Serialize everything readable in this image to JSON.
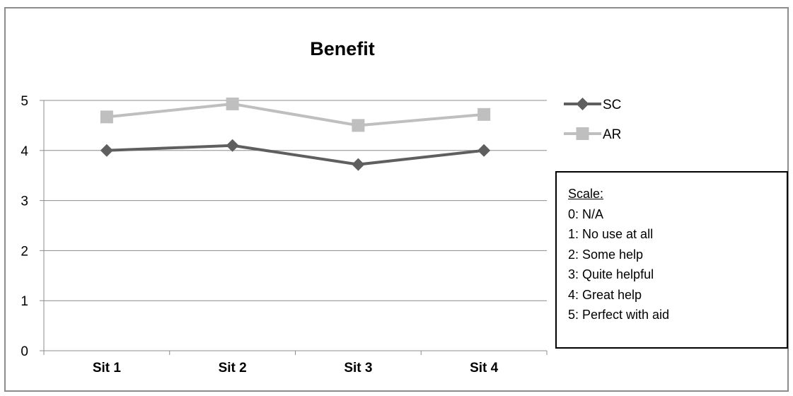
{
  "chart_data": {
    "type": "line",
    "title": "Benefit",
    "categories": [
      "Sit 1",
      "Sit 2",
      "Sit 3",
      "Sit 4"
    ],
    "series": [
      {
        "name": "SC",
        "values": [
          4.0,
          4.1,
          3.72,
          4.0
        ],
        "color": "#5f5f5f",
        "marker": "diamond"
      },
      {
        "name": "AR",
        "values": [
          4.67,
          4.93,
          4.5,
          4.72
        ],
        "color": "#bfbfbf",
        "marker": "square"
      }
    ],
    "yticks": [
      "0",
      "1",
      "2",
      "3",
      "4",
      "5"
    ],
    "ylim": [
      0,
      5
    ],
    "grid": true,
    "legend": "right",
    "xlabel": "",
    "ylabel": ""
  },
  "scale_box": {
    "title": "Scale:",
    "items": [
      "0: N/A",
      "1: No use at all",
      "2: Some help",
      "3: Quite helpful",
      "4: Great help",
      "5: Perfect with aid"
    ]
  }
}
